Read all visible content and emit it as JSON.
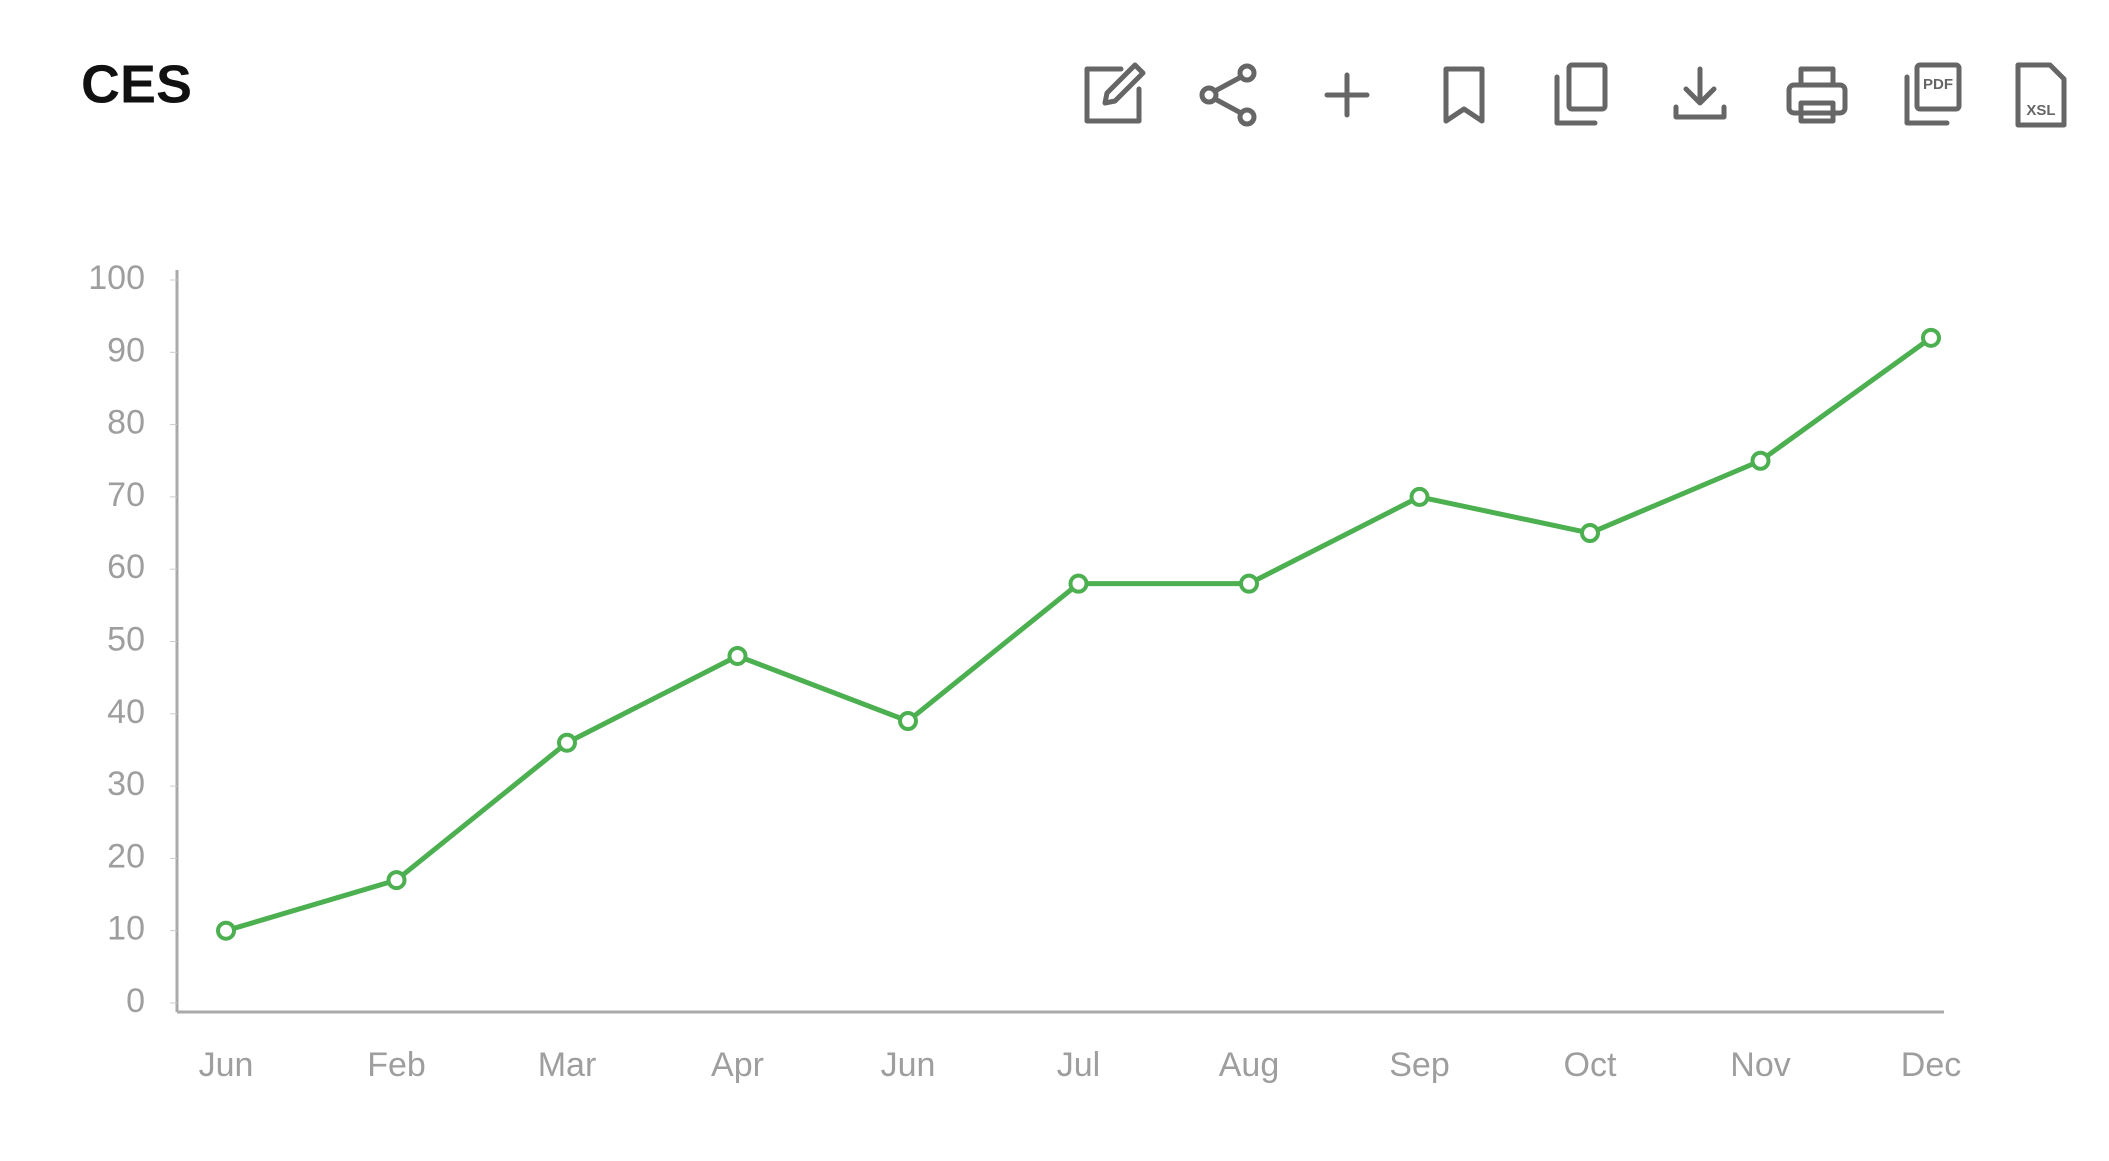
{
  "chart_data": {
    "type": "line",
    "title": "CES",
    "categories": [
      "Jun",
      "Feb",
      "Mar",
      "Apr",
      "Jun",
      "Jul",
      "Aug",
      "Sep",
      "Oct",
      "Nov",
      "Dec"
    ],
    "values": [
      10,
      17,
      36,
      48,
      39,
      58,
      58,
      70,
      65,
      75,
      92
    ],
    "color": "#4caf50",
    "ylim": [
      0,
      100
    ],
    "yticks": [
      0,
      10,
      20,
      30,
      40,
      50,
      60,
      70,
      80,
      90,
      100
    ],
    "grid": false
  }
}
